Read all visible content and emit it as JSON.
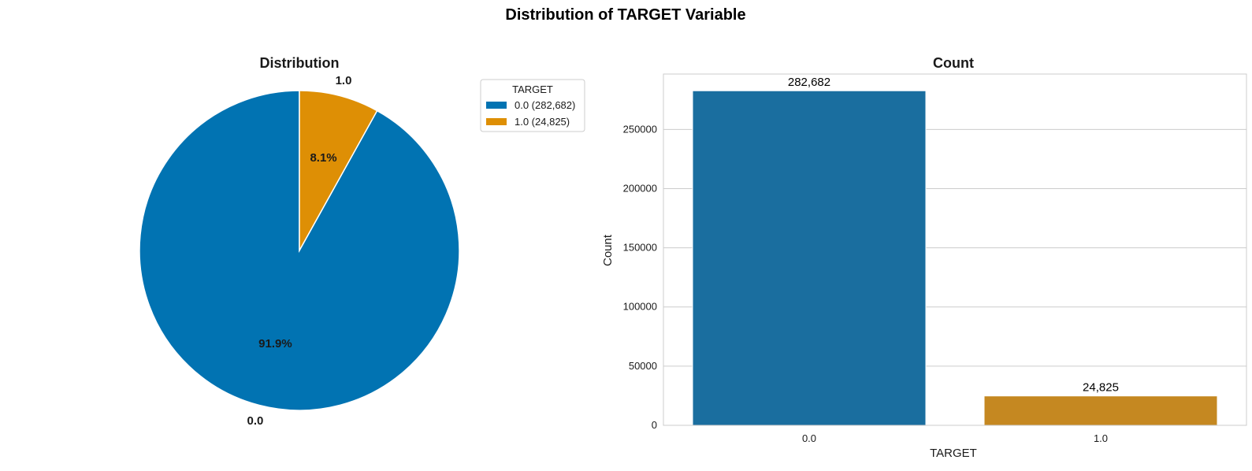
{
  "figure": {
    "suptitle": "Distribution of TARGET Variable"
  },
  "colors": {
    "series_0": "#0173b2",
    "series_1": "#de8f05",
    "bar_0": "#1a6e9f",
    "bar_1": "#c58821",
    "text": "#1a1a1a",
    "grid": "#cccccc",
    "axis_frame": "#cccccc"
  },
  "chart_data": [
    {
      "type": "pie",
      "title": "Distribution",
      "labels": [
        "0.0",
        "1.0"
      ],
      "values": [
        282682,
        24825
      ],
      "percent_labels": [
        "91.9%",
        "8.1%"
      ],
      "start_angle_deg": 90,
      "direction": "counterclockwise",
      "legend": {
        "title": "TARGET",
        "placement": "upper-right-outside",
        "entries": [
          "0.0 (282,682)",
          "1.0 (24,825)"
        ]
      }
    },
    {
      "type": "bar",
      "title": "Count",
      "categories": [
        "0.0",
        "1.0"
      ],
      "values": [
        282682,
        24825
      ],
      "value_labels": [
        "282,682",
        "24,825"
      ],
      "xlabel": "TARGET",
      "ylabel": "Count",
      "ylim": [
        0,
        296816
      ],
      "yticks": [
        0,
        50000,
        100000,
        150000,
        200000,
        250000
      ],
      "ytick_labels": [
        "0",
        "50000",
        "100000",
        "150000",
        "200000",
        "250000"
      ],
      "grid": "y-only"
    }
  ]
}
